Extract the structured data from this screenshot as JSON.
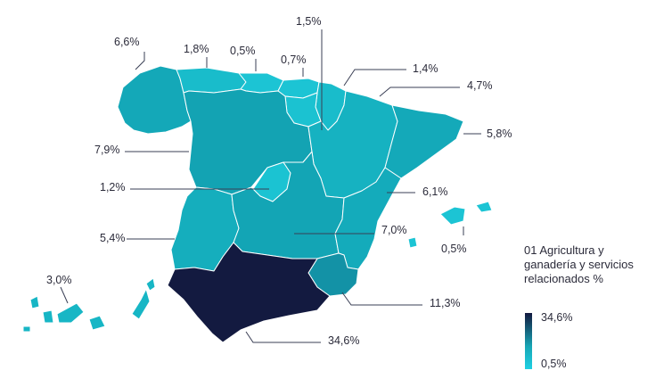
{
  "regions": [
    {
      "id": "galicia",
      "value_label": "6,6%",
      "value": 6.6,
      "color": "#14a8b8"
    },
    {
      "id": "asturias",
      "value_label": "1,8%",
      "value": 1.8,
      "color": "#19bccb"
    },
    {
      "id": "cantabria",
      "value_label": "0,5%",
      "value": 0.5,
      "color": "#1cc4d4"
    },
    {
      "id": "pais-vasco",
      "value_label": "0,7%",
      "value": 0.7,
      "color": "#1cc4d4"
    },
    {
      "id": "navarra",
      "value_label": "1,5%",
      "value": 1.5,
      "color": "#19bccb"
    },
    {
      "id": "la-rioja",
      "value_label": "1,4%",
      "value": 1.4,
      "color": "#1bc2d1"
    },
    {
      "id": "aragon",
      "value_label": "4,7%",
      "value": 4.7,
      "color": "#16b2c1"
    },
    {
      "id": "cataluna",
      "value_label": "5,8%",
      "value": 5.8,
      "color": "#14a9b9"
    },
    {
      "id": "castilla-leon",
      "value_label": "7,9%",
      "value": 7.9,
      "color": "#13a3b3"
    },
    {
      "id": "madrid",
      "value_label": "1,2%",
      "value": 1.2,
      "color": "#1bc3d2"
    },
    {
      "id": "comunidad-valenciana",
      "value_label": "6,1%",
      "value": 6.1,
      "color": "#14abbb"
    },
    {
      "id": "castilla-la-mancha",
      "value_label": "7,0%",
      "value": 7.0,
      "color": "#13a5b5"
    },
    {
      "id": "extremadura",
      "value_label": "5,4%",
      "value": 5.4,
      "color": "#15aebd"
    },
    {
      "id": "baleares",
      "value_label": "0,5%",
      "value": 0.5,
      "color": "#1cc4d4"
    },
    {
      "id": "canarias",
      "value_label": "3,0%",
      "value": 3.0,
      "color": "#17b6c5"
    },
    {
      "id": "murcia",
      "value_label": "11,3%",
      "value": 11.3,
      "color": "#1392a6"
    },
    {
      "id": "andalucia",
      "value_label": "34,6%",
      "value": 34.6,
      "color": "#131a40"
    }
  ],
  "legend": {
    "title": "01 Agricultura y ganadería y servicios relacionados %",
    "max_label": "34,6%",
    "min_label": "0,5%",
    "max_color": "#13193f",
    "min_color": "#1fd0e3"
  },
  "colors": {
    "leader_line": "#3a3f55",
    "region_border": "#ffffff"
  }
}
